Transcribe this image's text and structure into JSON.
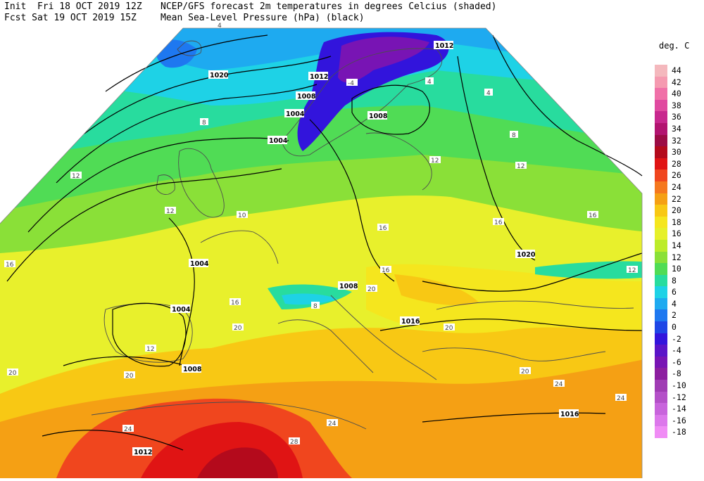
{
  "header": {
    "left_line1": "Init  Fri 18 OCT 2019 12Z",
    "left_line2": "Fcst Sat 19 OCT 2019 15Z",
    "right_line1": "NCEP/GFS forecast 2m temperatures in degrees Celcius (shaded)",
    "right_line2": "Mean Sea-Level Pressure (hPa) (black)"
  },
  "legend": {
    "title": "deg. C",
    "items": [
      {
        "label": "44",
        "color": "#f4b8bd"
      },
      {
        "label": "42",
        "color": "#f59ab0"
      },
      {
        "label": "40",
        "color": "#f070a8"
      },
      {
        "label": "38",
        "color": "#e04aa0"
      },
      {
        "label": "36",
        "color": "#c8288e"
      },
      {
        "label": "34",
        "color": "#b21470"
      },
      {
        "label": "32",
        "color": "#9c0c45"
      },
      {
        "label": "30",
        "color": "#b40a1c"
      },
      {
        "label": "28",
        "color": "#e01414"
      },
      {
        "label": "26",
        "color": "#f0461e"
      },
      {
        "label": "24",
        "color": "#f5781e"
      },
      {
        "label": "22",
        "color": "#f5a014"
      },
      {
        "label": "20",
        "color": "#f8c814"
      },
      {
        "label": "18",
        "color": "#f5e61e"
      },
      {
        "label": "16",
        "color": "#e6f02a"
      },
      {
        "label": "14",
        "color": "#bcec2a"
      },
      {
        "label": "12",
        "color": "#8ae038"
      },
      {
        "label": "10",
        "color": "#50dc55"
      },
      {
        "label": "8",
        "color": "#28dc9e"
      },
      {
        "label": "6",
        "color": "#1ed2e6"
      },
      {
        "label": "4",
        "color": "#1eaaf0"
      },
      {
        "label": "2",
        "color": "#1e78f0"
      },
      {
        "label": "0",
        "color": "#1e46e6"
      },
      {
        "label": "-2",
        "color": "#3214dc"
      },
      {
        "label": "-4",
        "color": "#5a14c8"
      },
      {
        "label": "-6",
        "color": "#7814b4"
      },
      {
        "label": "-8",
        "color": "#8c1ea0"
      },
      {
        "label": "-10",
        "color": "#a03cb4"
      },
      {
        "label": "-12",
        "color": "#b450c8"
      },
      {
        "label": "-14",
        "color": "#c864dc"
      },
      {
        "label": "-16",
        "color": "#dc78eb"
      },
      {
        "label": "-18",
        "color": "#f08cf5"
      }
    ]
  },
  "map": {
    "pressure_labels": [
      "1020",
      "1016",
      "1012",
      "1008",
      "1004",
      "1004",
      "1008",
      "1012",
      "1016",
      "1008",
      "1004",
      "1004",
      "1008",
      "1012",
      "1016",
      "1020",
      "1012",
      "1016"
    ],
    "temperature_labels": [
      "4",
      "8",
      "12",
      "12",
      "10",
      "16",
      "16",
      "20",
      "20",
      "24",
      "24",
      "28",
      "20",
      "16",
      "12",
      "8",
      "4",
      "12",
      "16",
      "16",
      "20",
      "20",
      "20",
      "24",
      "24",
      "12",
      "8",
      "4",
      "16",
      "12",
      "-4"
    ]
  }
}
